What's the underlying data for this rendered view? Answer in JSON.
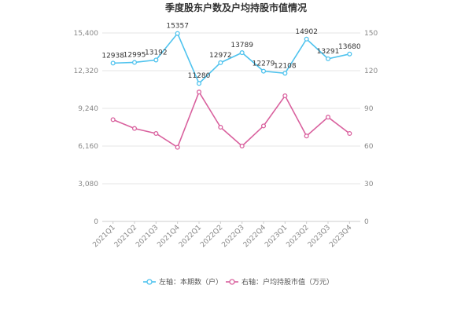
{
  "chart_data": {
    "type": "line",
    "title": "季度股东户数及户均持股市值情况",
    "categories": [
      "2021Q1",
      "2021Q2",
      "2021Q3",
      "2021Q4",
      "2022Q1",
      "2022Q2",
      "2022Q3",
      "2022Q4",
      "2023Q1",
      "2023Q2",
      "2023Q3",
      "2023Q4"
    ],
    "left_axis": {
      "ticks": [
        "0",
        "3,080",
        "6,160",
        "9,240",
        "12,320",
        "15,400"
      ],
      "ylim": [
        0,
        15400
      ]
    },
    "right_axis": {
      "ticks": [
        "0",
        "30",
        "60",
        "90",
        "120",
        "150"
      ],
      "ylim": [
        0,
        150
      ]
    },
    "grid": true,
    "legend_position": "bottom",
    "series": [
      {
        "name": "左轴：本期数（户）",
        "axis": "left",
        "color": "#4fc3ee",
        "values": [
          12938,
          12995,
          13192,
          15357,
          11280,
          12972,
          13789,
          12279,
          12108,
          14902,
          13291,
          13680
        ],
        "labels": [
          "12938",
          "12995",
          "13192",
          "15357",
          "11280",
          "12972",
          "13789",
          "12279",
          "12108",
          "14902",
          "13291",
          "13680"
        ]
      },
      {
        "name": "右轴：户均持股市值（万元）",
        "axis": "right",
        "color": "#d9619e",
        "values": [
          81,
          74,
          70,
          59,
          103,
          75,
          60,
          76,
          100,
          68,
          83,
          70
        ]
      }
    ]
  }
}
